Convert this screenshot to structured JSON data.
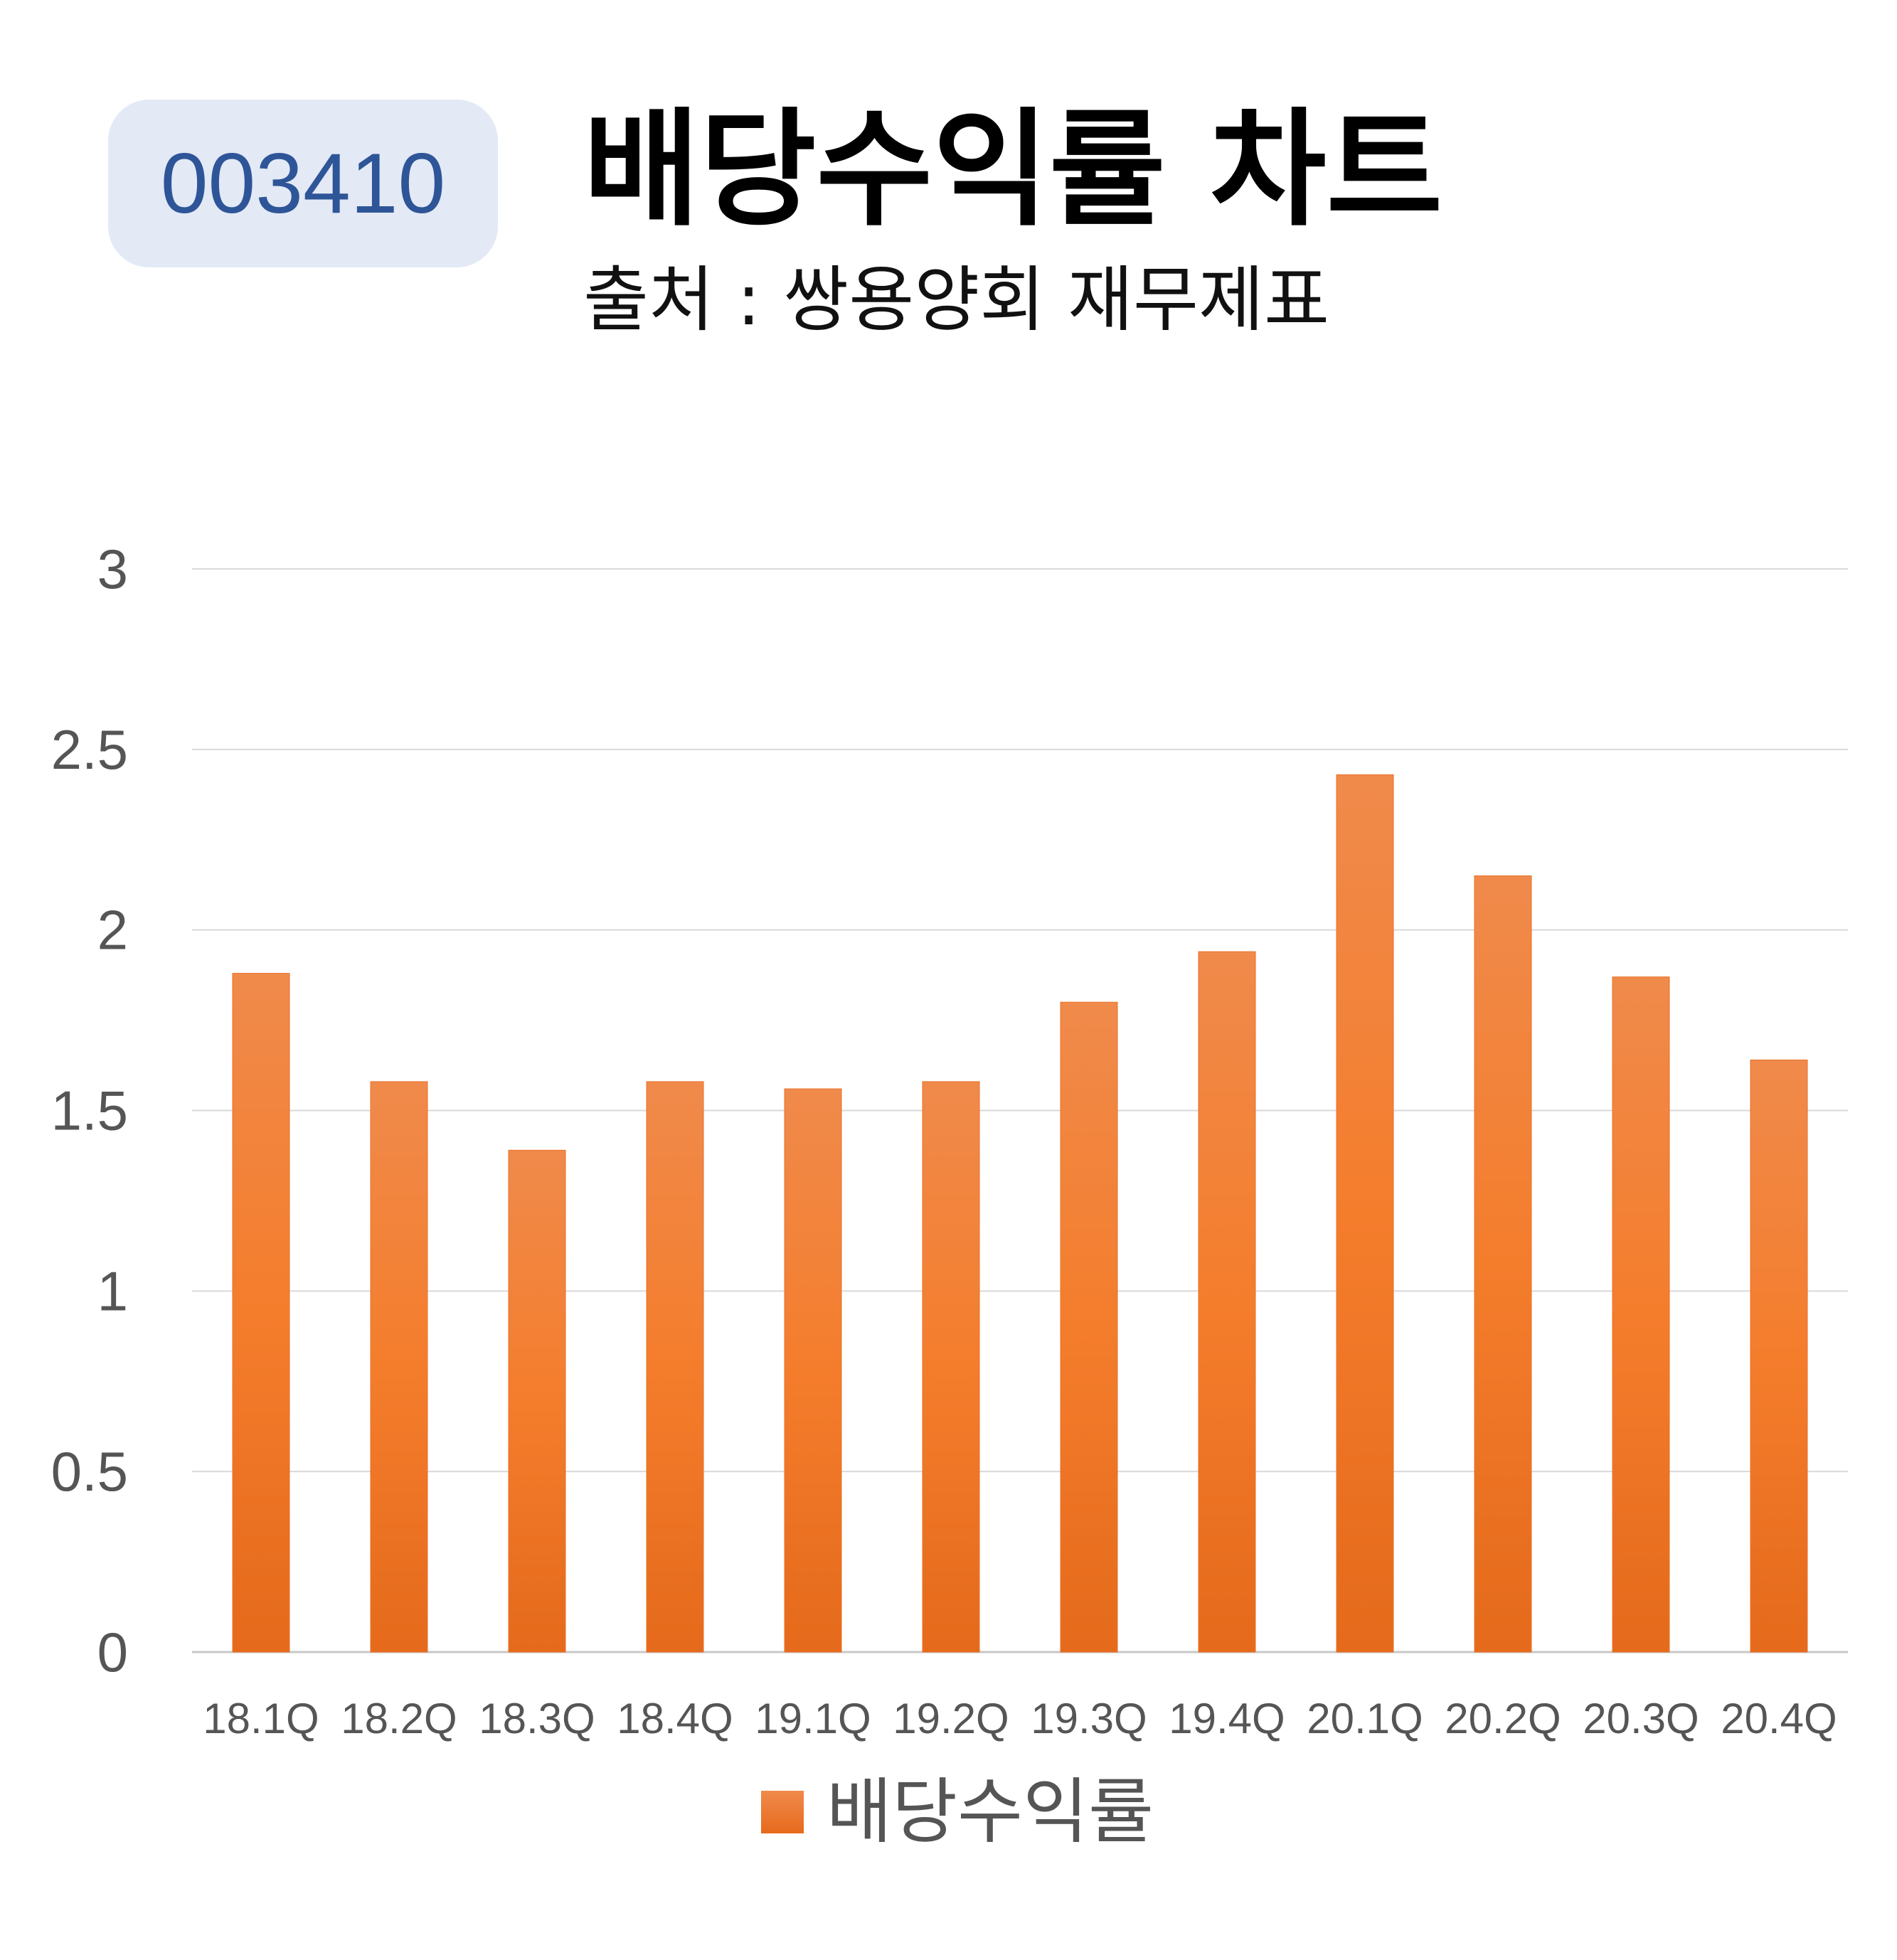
{
  "badge": {
    "code": "003410"
  },
  "header": {
    "title": "배당수익률 차트",
    "subtitle": "출처 : 쌍용양회 재무제표"
  },
  "colors": {
    "bar_top": "#f08a4b",
    "bar_bottom": "#e66a1c",
    "badge_bg": "#e3e9f5",
    "badge_text": "#2e5597",
    "grid": "#d9d9d9"
  },
  "chart_data": {
    "type": "bar",
    "categories": [
      "18.1Q",
      "18.2Q",
      "18.3Q",
      "18.4Q",
      "19.1Q",
      "19.2Q",
      "19.3Q",
      "19.4Q",
      "20.1Q",
      "20.2Q",
      "20.3Q",
      "20.4Q"
    ],
    "series": [
      {
        "name": "배당수익률",
        "values": [
          1.88,
          1.58,
          1.39,
          1.58,
          1.56,
          1.58,
          1.8,
          1.94,
          2.43,
          2.15,
          1.87,
          1.64
        ]
      }
    ],
    "yticks": [
      "0",
      "0.5",
      "1",
      "1.5",
      "2",
      "2.5",
      "3"
    ],
    "ylim": [
      0,
      3
    ],
    "grid": true,
    "legend": "bottom-center"
  }
}
